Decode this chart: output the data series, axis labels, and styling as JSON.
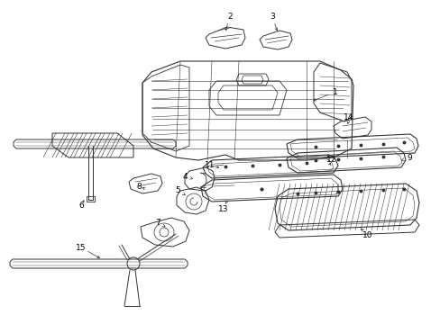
{
  "background_color": "#ffffff",
  "line_color": "#333333",
  "label_color": "#000000",
  "lw": 0.7,
  "labels": {
    "1": [
      372,
      102,
      340,
      115
    ],
    "2": [
      255,
      18,
      248,
      42
    ],
    "3": [
      302,
      18,
      310,
      42
    ],
    "4": [
      205,
      196,
      222,
      201
    ],
    "5": [
      197,
      211,
      210,
      220
    ],
    "6": [
      90,
      228,
      96,
      218
    ],
    "7": [
      175,
      247,
      188,
      255
    ],
    "8": [
      154,
      207,
      162,
      210
    ],
    "9": [
      454,
      175,
      440,
      180
    ],
    "10": [
      408,
      262,
      395,
      248
    ],
    "11": [
      233,
      183,
      248,
      188
    ],
    "12": [
      368,
      177,
      365,
      185
    ],
    "13": [
      248,
      232,
      252,
      222
    ],
    "14": [
      387,
      130,
      385,
      143
    ],
    "15": [
      90,
      275,
      118,
      291
    ]
  }
}
